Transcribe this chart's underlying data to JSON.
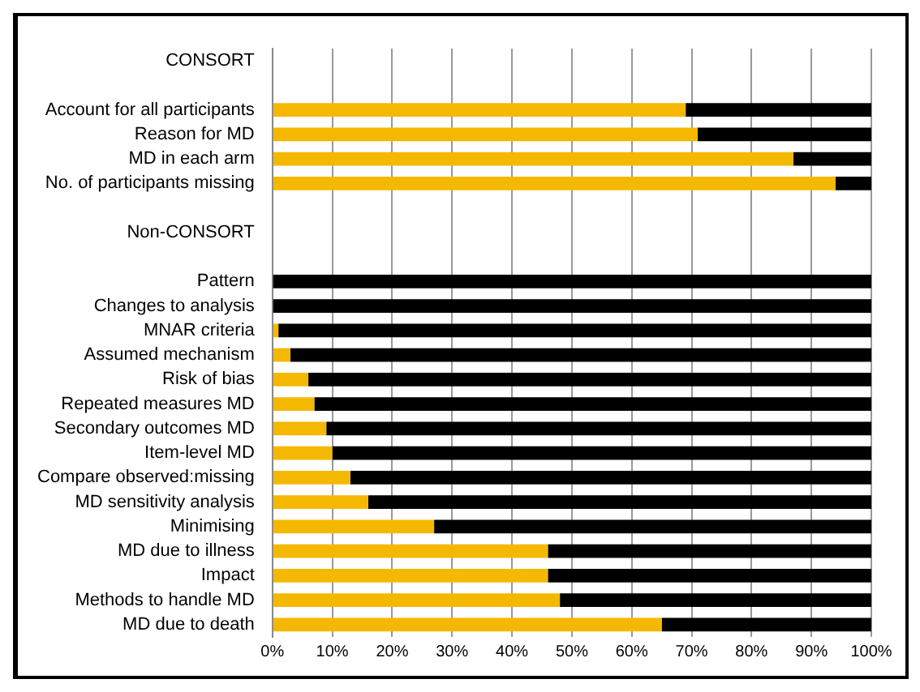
{
  "chart_data": {
    "type": "bar",
    "orientation": "horizontal",
    "stacked": true,
    "categories": [
      "CONSORT",
      null,
      "Account for all participants",
      "Reason for MD",
      "MD in each arm",
      "No. of participants missing",
      null,
      "Non-CONSORT",
      null,
      "Pattern",
      "Changes to analysis",
      "MNAR criteria",
      "Assumed mechanism",
      "Risk of bias",
      "Repeated measures MD",
      "Secondary outcomes MD",
      "Item-level MD",
      "Compare observed:missing",
      "MD sensitivity analysis",
      "Minimising",
      "MD due to illness",
      "Impact",
      "Methods to handle MD",
      "MD due to death"
    ],
    "series": [
      {
        "color": "#f5b800",
        "values": [
          null,
          null,
          69,
          71,
          87,
          94,
          null,
          null,
          null,
          0,
          0,
          1,
          3,
          6,
          7,
          9,
          10,
          13,
          16,
          27,
          46,
          46,
          48,
          65
        ]
      },
      {
        "color": "#000000",
        "values": [
          null,
          null,
          31,
          29,
          13,
          6,
          null,
          null,
          null,
          100,
          100,
          99,
          97,
          94,
          93,
          91,
          90,
          87,
          84,
          73,
          54,
          54,
          52,
          35
        ]
      }
    ],
    "xlim": [
      0,
      100
    ],
    "xticks": [
      {
        "value": 0,
        "label": "0%"
      },
      {
        "value": 10,
        "label": "10%"
      },
      {
        "value": 20,
        "label": "20%"
      },
      {
        "value": 30,
        "label": "30%"
      },
      {
        "value": 40,
        "label": "40%"
      },
      {
        "value": 50,
        "label": "50%"
      },
      {
        "value": 60,
        "label": "60%"
      },
      {
        "value": 70,
        "label": "70%"
      },
      {
        "value": 80,
        "label": "80%"
      },
      {
        "value": 90,
        "label": "90%"
      },
      {
        "value": 100,
        "label": "100%"
      }
    ],
    "grid": "x",
    "legend": false
  }
}
